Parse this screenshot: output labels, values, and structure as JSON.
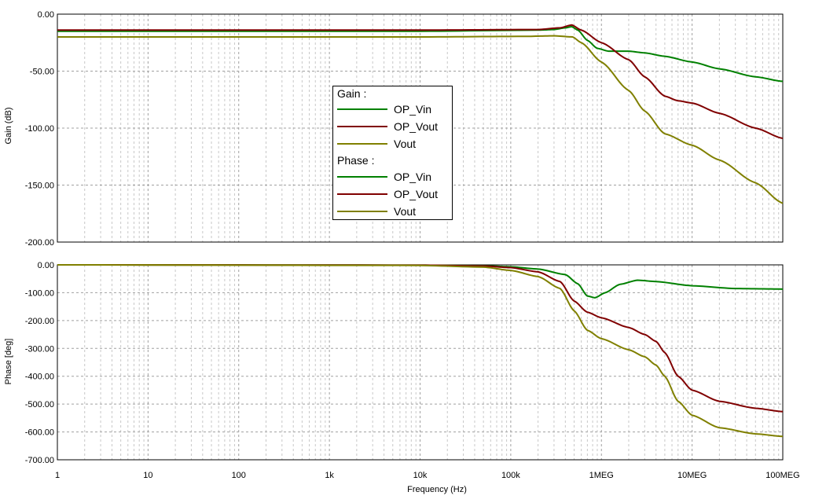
{
  "chart_data": [
    {
      "type": "line",
      "x_scale": "log",
      "ylabel": "Gain (dB)",
      "xlim": [
        1,
        100000000
      ],
      "ylim": [
        -200,
        0
      ],
      "yticks": [
        "0.00",
        "-50.00",
        "-100.00",
        "-150.00",
        "-200.00"
      ],
      "grid": true,
      "series": [
        {
          "name": "OP_Vin",
          "color": "#008000",
          "points": [
            [
              1,
              -15
            ],
            [
              10000,
              -15
            ],
            [
              200000,
              -14
            ],
            [
              300000,
              -13.5
            ],
            [
              400000,
              -12
            ],
            [
              470000,
              -11
            ],
            [
              550000,
              -14
            ],
            [
              700000,
              -23
            ],
            [
              900000,
              -30
            ],
            [
              1200000,
              -32.5
            ],
            [
              2000000,
              -32.5
            ],
            [
              3000000,
              -34
            ],
            [
              5000000,
              -37
            ],
            [
              10000000,
              -42
            ],
            [
              20000000,
              -48
            ],
            [
              50000000,
              -55
            ],
            [
              100000000,
              -59
            ]
          ]
        },
        {
          "name": "OP_Vout",
          "color": "#800000",
          "points": [
            [
              1,
              -14
            ],
            [
              10000,
              -14
            ],
            [
              200000,
              -13.5
            ],
            [
              350000,
              -12
            ],
            [
              470000,
              -9.5
            ],
            [
              600000,
              -14
            ],
            [
              1000000,
              -25
            ],
            [
              2000000,
              -40
            ],
            [
              3000000,
              -55
            ],
            [
              5000000,
              -72
            ],
            [
              7000000,
              -76
            ],
            [
              10000000,
              -78
            ],
            [
              20000000,
              -87
            ],
            [
              50000000,
              -100
            ],
            [
              100000000,
              -109
            ]
          ]
        },
        {
          "name": "Vout",
          "color": "#808000",
          "points": [
            [
              1,
              -20
            ],
            [
              10000,
              -20
            ],
            [
              150000,
              -19.5
            ],
            [
              300000,
              -19
            ],
            [
              480000,
              -20
            ],
            [
              600000,
              -25
            ],
            [
              1000000,
              -42
            ],
            [
              2000000,
              -67
            ],
            [
              3000000,
              -85
            ],
            [
              5000000,
              -105
            ],
            [
              10000000,
              -115
            ],
            [
              20000000,
              -128
            ],
            [
              50000000,
              -148
            ],
            [
              100000000,
              -166
            ]
          ]
        }
      ]
    },
    {
      "type": "line",
      "x_scale": "log",
      "xlabel": "Frequency (Hz)",
      "ylabel": "Phase [deg]",
      "xlim": [
        1,
        100000000
      ],
      "ylim": [
        -700,
        0
      ],
      "xticks": [
        "1",
        "10",
        "100",
        "1k",
        "10k",
        "100k",
        "1MEG",
        "10MEG",
        "100MEG"
      ],
      "yticks": [
        "0.00",
        "-100.00",
        "-200.00",
        "-300.00",
        "-400.00",
        "-500.00",
        "-600.00",
        "-700.00"
      ],
      "grid": true,
      "series": [
        {
          "name": "OP_Vin",
          "color": "#008000",
          "points": [
            [
              1,
              0
            ],
            [
              10000,
              -1
            ],
            [
              50000,
              -3
            ],
            [
              100000,
              -7
            ],
            [
              200000,
              -15
            ],
            [
              400000,
              -35
            ],
            [
              550000,
              -68
            ],
            [
              700000,
              -112
            ],
            [
              850000,
              -118
            ],
            [
              1100000,
              -100
            ],
            [
              1600000,
              -70
            ],
            [
              2500000,
              -55
            ],
            [
              4000000,
              -60
            ],
            [
              10000000,
              -75
            ],
            [
              30000000,
              -85
            ],
            [
              100000000,
              -87
            ]
          ]
        },
        {
          "name": "OP_Vout",
          "color": "#800000",
          "points": [
            [
              1,
              0
            ],
            [
              10000,
              -1
            ],
            [
              50000,
              -4
            ],
            [
              100000,
              -10
            ],
            [
              200000,
              -25
            ],
            [
              350000,
              -60
            ],
            [
              500000,
              -130
            ],
            [
              700000,
              -170
            ],
            [
              1000000,
              -190
            ],
            [
              2000000,
              -225
            ],
            [
              3000000,
              -250
            ],
            [
              4000000,
              -275
            ],
            [
              5000000,
              -315
            ],
            [
              7000000,
              -400
            ],
            [
              10000000,
              -450
            ],
            [
              20000000,
              -490
            ],
            [
              50000000,
              -515
            ],
            [
              100000000,
              -527
            ]
          ]
        },
        {
          "name": "Vout",
          "color": "#808000",
          "points": [
            [
              1,
              0
            ],
            [
              10000,
              -2
            ],
            [
              50000,
              -8
            ],
            [
              100000,
              -20
            ],
            [
              200000,
              -42
            ],
            [
              350000,
              -85
            ],
            [
              500000,
              -165
            ],
            [
              700000,
              -235
            ],
            [
              1000000,
              -265
            ],
            [
              2000000,
              -305
            ],
            [
              3000000,
              -330
            ],
            [
              4000000,
              -360
            ],
            [
              5000000,
              -400
            ],
            [
              7000000,
              -490
            ],
            [
              10000000,
              -540
            ],
            [
              20000000,
              -585
            ],
            [
              50000000,
              -607
            ],
            [
              100000000,
              -616
            ]
          ]
        }
      ]
    }
  ],
  "legend": {
    "gain_header": "Gain :",
    "phase_header": "Phase :",
    "gain_items": [
      {
        "name": "OP_Vin",
        "color": "#008000"
      },
      {
        "name": "OP_Vout",
        "color": "#800000"
      },
      {
        "name": "Vout",
        "color": "#808000"
      }
    ],
    "phase_items": [
      {
        "name": "OP_Vin",
        "color": "#008000"
      },
      {
        "name": "OP_Vout",
        "color": "#800000"
      },
      {
        "name": "Vout",
        "color": "#808000"
      }
    ]
  }
}
